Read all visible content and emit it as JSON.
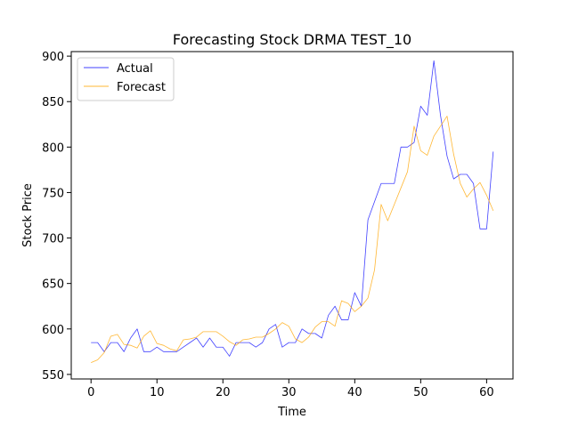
{
  "chart_data": {
    "type": "line",
    "title": "Forecasting Stock DRMA TEST_10",
    "xlabel": "Time",
    "ylabel": "Stock Price",
    "xlim": [
      -3,
      64
    ],
    "ylim": [
      545,
      905
    ],
    "xticks": [
      0,
      10,
      20,
      30,
      40,
      50,
      60
    ],
    "yticks": [
      550,
      600,
      650,
      700,
      750,
      800,
      850,
      900
    ],
    "grid": false,
    "legend_position": "top-left",
    "series": [
      {
        "name": "Actual",
        "color": "#0000ff",
        "x": [
          0,
          1,
          2,
          3,
          4,
          5,
          6,
          7,
          8,
          9,
          10,
          11,
          12,
          13,
          14,
          15,
          16,
          17,
          18,
          19,
          20,
          21,
          22,
          23,
          24,
          25,
          26,
          27,
          28,
          29,
          30,
          31,
          32,
          33,
          34,
          35,
          36,
          37,
          38,
          39,
          40,
          41,
          42,
          43,
          44,
          45,
          46,
          47,
          48,
          49,
          50,
          51,
          52,
          53,
          54,
          55,
          56,
          57,
          58,
          59,
          60,
          61
        ],
        "y": [
          585,
          585,
          575,
          585,
          585,
          575,
          590,
          600,
          575,
          575,
          580,
          575,
          575,
          575,
          580,
          585,
          590,
          580,
          590,
          580,
          580,
          570,
          585,
          585,
          585,
          580,
          585,
          600,
          605,
          580,
          585,
          585,
          600,
          595,
          595,
          590,
          615,
          625,
          610,
          610,
          640,
          625,
          720,
          740,
          760,
          760,
          760,
          800,
          800,
          805,
          845,
          835,
          895,
          835,
          790,
          765,
          770,
          770,
          760,
          710,
          710,
          795
        ]
      },
      {
        "name": "Forecast",
        "color": "#ffa500",
        "x": [
          0,
          1,
          2,
          3,
          4,
          5,
          6,
          7,
          8,
          9,
          10,
          11,
          12,
          13,
          14,
          15,
          16,
          17,
          18,
          19,
          20,
          21,
          22,
          23,
          24,
          25,
          26,
          27,
          28,
          29,
          30,
          31,
          32,
          33,
          34,
          35,
          36,
          37,
          38,
          39,
          40,
          41,
          42,
          43,
          44,
          45,
          46,
          47,
          48,
          49,
          50,
          51,
          52,
          53,
          54,
          55,
          56,
          57,
          58,
          59,
          60,
          61
        ],
        "y": [
          563,
          566,
          574,
          592,
          594,
          583,
          582,
          579,
          592,
          598,
          584,
          582,
          578,
          576,
          588,
          589,
          591,
          597,
          597,
          597,
          592,
          586,
          582,
          588,
          589,
          591,
          591,
          595,
          600,
          607,
          603,
          589,
          585,
          591,
          602,
          608,
          608,
          603,
          631,
          628,
          619,
          625,
          634,
          665,
          737,
          719,
          737,
          755,
          773,
          823,
          796,
          791,
          812,
          823,
          834,
          792,
          760,
          745,
          754,
          761,
          747,
          730
        ]
      }
    ]
  }
}
